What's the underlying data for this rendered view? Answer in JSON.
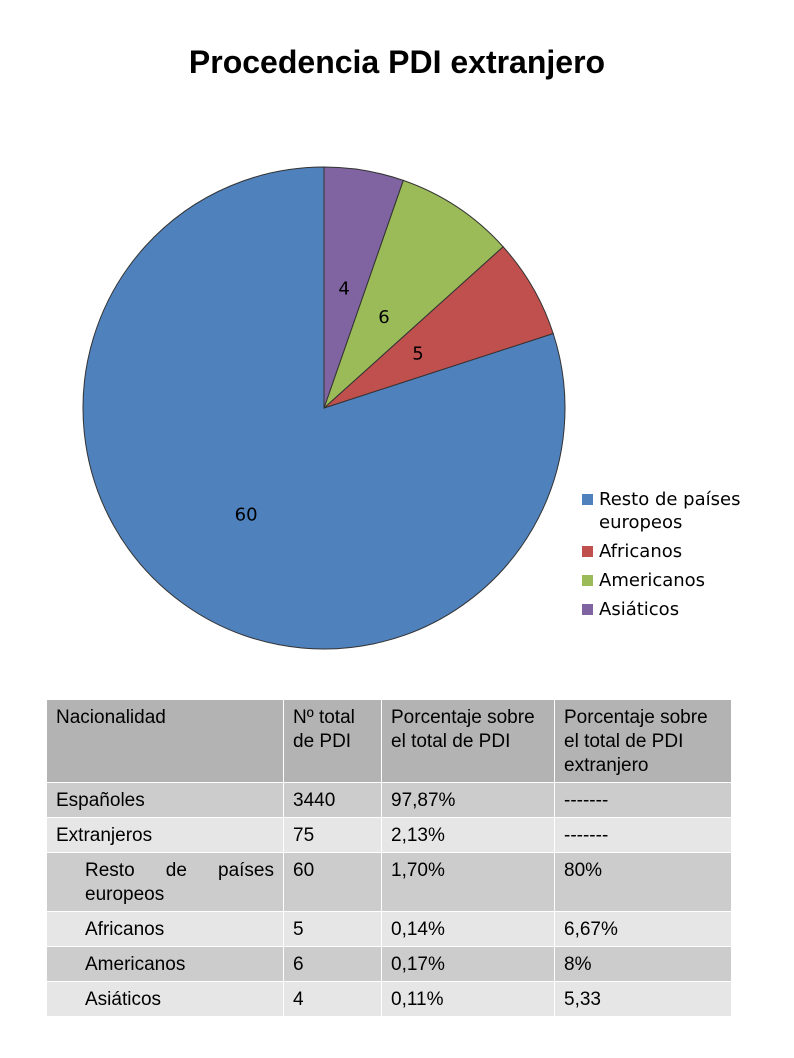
{
  "chart_data": {
    "type": "pie",
    "title": "Procedencia PDI extranjero",
    "categories": [
      "Resto de países europeos",
      "Africanos",
      "Americanos",
      "Asiáticos"
    ],
    "values": [
      60,
      5,
      6,
      4
    ],
    "colors": [
      "#4f81bd",
      "#c0504d",
      "#9bbb59",
      "#8064a2"
    ],
    "data_labels": [
      "60",
      "5",
      "6",
      "4"
    ],
    "legend_position": "right-bottom"
  },
  "table": {
    "headers": [
      "Nacionalidad",
      "Nº total de PDI",
      "Porcentaje sobre el total de PDI",
      "Porcentaje sobre el total de PDI extranjero"
    ],
    "rows": [
      [
        "Españoles",
        "3440",
        "97,87%",
        "-------"
      ],
      [
        "Extranjeros",
        "75",
        "2,13%",
        "-------"
      ],
      [
        "Resto de países europeos",
        "60",
        "1,70%",
        "80%"
      ],
      [
        "Africanos",
        "5",
        "0,14%",
        "6,67%"
      ],
      [
        "Americanos",
        "6",
        "0,17%",
        "8%"
      ],
      [
        "Asiáticos",
        "4",
        "0,11%",
        "5,33"
      ]
    ]
  }
}
